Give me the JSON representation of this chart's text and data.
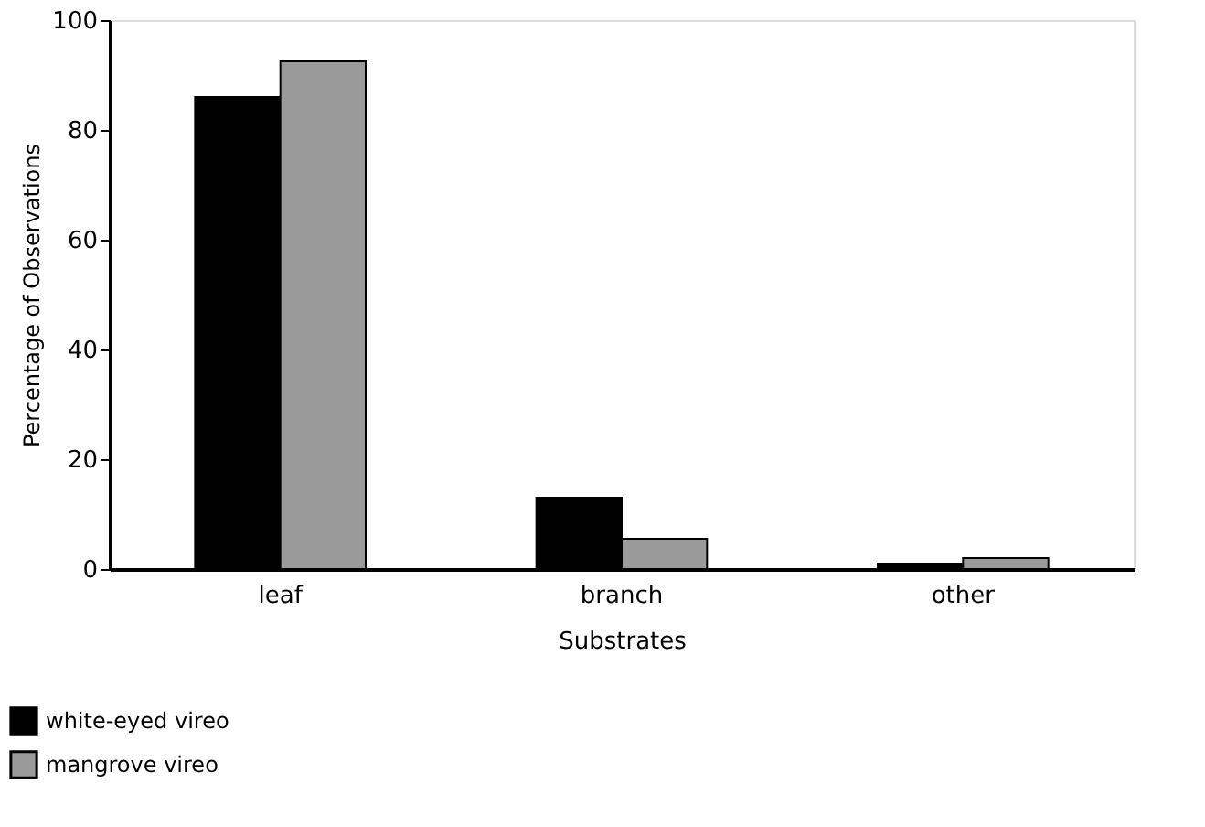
{
  "chart_data": {
    "type": "bar",
    "xlabel": "Substrates",
    "ylabel": "Percentage of Observations",
    "categories": [
      "leaf",
      "branch",
      "other"
    ],
    "series": [
      {
        "name": "white-eyed vireo",
        "color": "#000000",
        "values": [
          86,
          13,
          1
        ]
      },
      {
        "name": "mangrove vireo",
        "color": "#9a9a9a",
        "values": [
          92.5,
          5.5,
          2
        ]
      }
    ],
    "ylim": [
      0,
      100
    ],
    "yticks": [
      0,
      20,
      40,
      60,
      80,
      100
    ],
    "grid": false,
    "legend": "bottom left"
  }
}
